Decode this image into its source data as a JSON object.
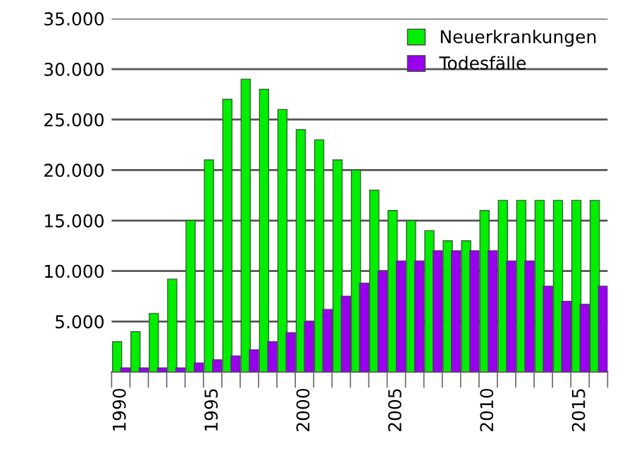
{
  "chart_data": {
    "type": "bar",
    "categories": [
      "1990",
      null,
      null,
      null,
      null,
      "1995",
      null,
      null,
      null,
      null,
      "2000",
      null,
      null,
      null,
      null,
      "2005",
      null,
      null,
      null,
      null,
      "2010",
      null,
      null,
      null,
      null,
      "2015",
      null
    ],
    "series": [
      {
        "name": "Neuerkrankungen",
        "color": "#00ee00",
        "values": [
          3000,
          4000,
          5800,
          9200,
          15000,
          21000,
          27000,
          29000,
          28000,
          26000,
          24000,
          23000,
          21000,
          20000,
          18000,
          16000,
          15000,
          14000,
          13000,
          13000,
          16000,
          17000,
          17000,
          17000,
          17000,
          17000,
          17000
        ]
      },
      {
        "name": "Todesfälle",
        "color": "#9900ee",
        "values": [
          400,
          400,
          400,
          400,
          900,
          1200,
          1600,
          2200,
          3000,
          3900,
          5000,
          6200,
          7500,
          8800,
          10000,
          11000,
          11000,
          12000,
          12000,
          12000,
          12000,
          11000,
          11000,
          8500,
          7000,
          6700,
          8500
        ]
      }
    ],
    "ylim": [
      0,
      35000
    ],
    "yticks": [
      {
        "value": 5000,
        "label": "5.000"
      },
      {
        "value": 10000,
        "label": "10.000"
      },
      {
        "value": 15000,
        "label": "15.000"
      },
      {
        "value": 20000,
        "label": "20.000"
      },
      {
        "value": 25000,
        "label": "25.000"
      },
      {
        "value": 30000,
        "label": "30.000"
      },
      {
        "value": 35000,
        "label": "35.000"
      }
    ],
    "grid": "y",
    "legend": "top right"
  }
}
